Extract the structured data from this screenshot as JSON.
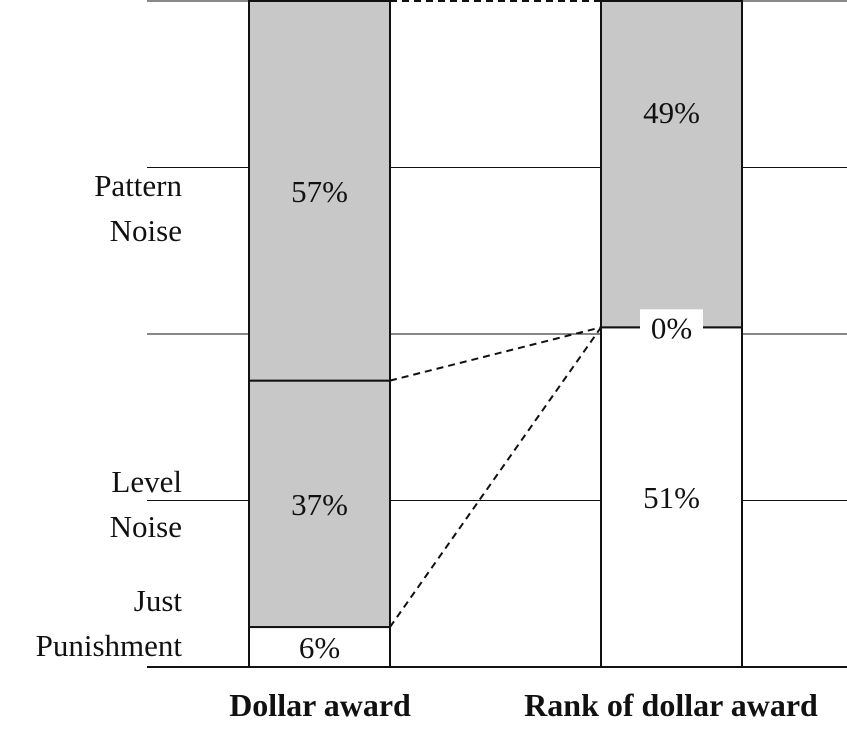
{
  "chart_data": {
    "type": "bar",
    "stacked": true,
    "normalized": true,
    "categories": [
      "Dollar award",
      "Rank of dollar award"
    ],
    "series": [
      {
        "name": "Just Punishment",
        "values": [
          6,
          51
        ],
        "color": "#ffffff"
      },
      {
        "name": "Level Noise",
        "values": [
          37,
          0
        ],
        "color": "#c8c8c8"
      },
      {
        "name": "Pattern Noise",
        "values": [
          57,
          49
        ],
        "color": "#c8c8c8"
      }
    ],
    "value_labels": [
      [
        "6%",
        "37%",
        "57%"
      ],
      [
        "51%",
        "0%",
        "49%"
      ]
    ],
    "ylim": [
      0,
      100
    ],
    "grid": true,
    "legend": "left, labels beside bar segments",
    "left_labels": {
      "pattern_noise": [
        "Pattern",
        "Noise"
      ],
      "level_noise": [
        "Level",
        "Noise"
      ],
      "just_punishment": [
        "Just",
        "Punishment"
      ]
    },
    "connectors": "dashed lines between corresponding segment boundaries"
  }
}
